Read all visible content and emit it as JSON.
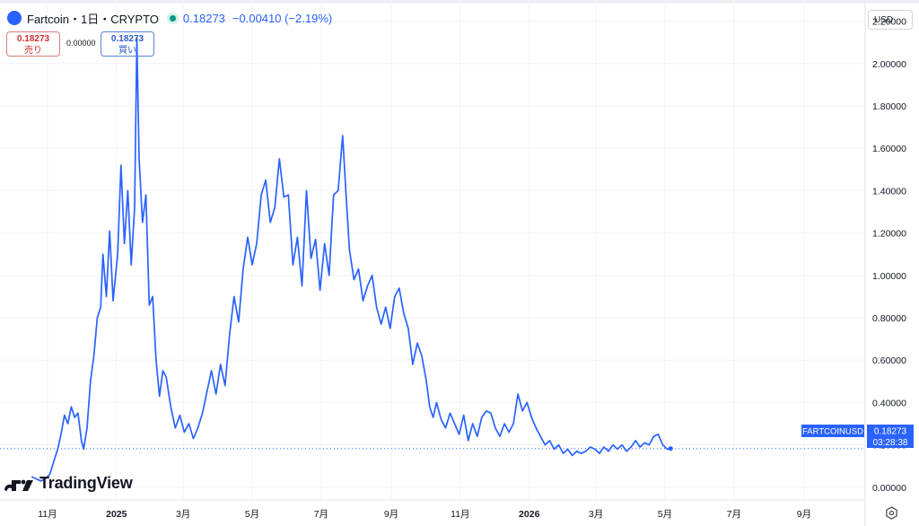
{
  "header": {
    "title": "Fartcoin・1日・CRYPTO",
    "price": "0.18273",
    "change": "−0.00410 (−2.19%)",
    "accent_color": "#2962ff",
    "status_color": "#089981",
    "logo_icon": "fartcoin-logo-icon"
  },
  "quote": {
    "sell_price": "0.18273",
    "sell_label": "売り",
    "spread": "0.00000",
    "buy_price": "0.18273",
    "buy_label": "買い"
  },
  "currency_button": "USD",
  "price_tag": {
    "symbol": "FARTCOINUSD",
    "price": "0.18273",
    "countdown": "03:28:38"
  },
  "brand": {
    "name": "TradingView",
    "icon": "tradingview-logo-icon"
  },
  "chart_data": {
    "type": "line",
    "series_color": "#2962ff",
    "grid": true,
    "ylim": [
      -0.06,
      2.3
    ],
    "y_ticks": [
      "0.00000",
      "0.20000",
      "0.40000",
      "0.60000",
      "0.80000",
      "1.00000",
      "1.20000",
      "1.40000",
      "1.60000",
      "1.80000",
      "2.00000",
      "2.20000"
    ],
    "x_ticks": [
      {
        "date": "2024-11-01",
        "label": "11月"
      },
      {
        "date": "2025-01-01",
        "label": "2025"
      },
      {
        "date": "2025-03-01",
        "label": "3月"
      },
      {
        "date": "2025-05-01",
        "label": "5月"
      },
      {
        "date": "2025-07-01",
        "label": "7月"
      },
      {
        "date": "2025-09-01",
        "label": "9月"
      },
      {
        "date": "2025-11-01",
        "label": "11月"
      },
      {
        "date": "2026-01-01",
        "label": "2026"
      },
      {
        "date": "2026-03-01",
        "label": "3月"
      },
      {
        "date": "2026-05-01",
        "label": "5月"
      },
      {
        "date": "2026-07-01",
        "label": "7月"
      },
      {
        "date": "2026-09-01",
        "label": "9月"
      }
    ],
    "xlim": [
      "2024-09-20",
      "2026-10-25"
    ],
    "last_value": 0.18273,
    "points": [
      [
        "2024-10-18",
        0.05
      ],
      [
        "2024-10-22",
        0.04
      ],
      [
        "2024-10-26",
        0.03
      ],
      [
        "2024-10-30",
        0.04
      ],
      [
        "2024-11-03",
        0.06
      ],
      [
        "2024-11-07",
        0.13
      ],
      [
        "2024-11-10",
        0.18
      ],
      [
        "2024-11-13",
        0.25
      ],
      [
        "2024-11-16",
        0.34
      ],
      [
        "2024-11-19",
        0.3
      ],
      [
        "2024-11-22",
        0.38
      ],
      [
        "2024-11-25",
        0.33
      ],
      [
        "2024-11-28",
        0.35
      ],
      [
        "2024-12-01",
        0.22
      ],
      [
        "2024-12-03",
        0.18
      ],
      [
        "2024-12-06",
        0.28
      ],
      [
        "2024-12-09",
        0.5
      ],
      [
        "2024-12-12",
        0.62
      ],
      [
        "2024-12-15",
        0.8
      ],
      [
        "2024-12-18",
        0.85
      ],
      [
        "2024-12-20",
        1.1
      ],
      [
        "2024-12-23",
        0.9
      ],
      [
        "2024-12-26",
        1.21
      ],
      [
        "2024-12-29",
        0.88
      ],
      [
        "2025-01-02",
        1.1
      ],
      [
        "2025-01-05",
        1.52
      ],
      [
        "2025-01-08",
        1.15
      ],
      [
        "2025-01-11",
        1.4
      ],
      [
        "2025-01-14",
        1.05
      ],
      [
        "2025-01-17",
        1.32
      ],
      [
        "2025-01-19",
        2.12
      ],
      [
        "2025-01-21",
        1.55
      ],
      [
        "2025-01-24",
        1.25
      ],
      [
        "2025-01-27",
        1.38
      ],
      [
        "2025-01-30",
        0.86
      ],
      [
        "2025-02-02",
        0.9
      ],
      [
        "2025-02-05",
        0.6
      ],
      [
        "2025-02-08",
        0.43
      ],
      [
        "2025-02-11",
        0.55
      ],
      [
        "2025-02-14",
        0.52
      ],
      [
        "2025-02-18",
        0.38
      ],
      [
        "2025-02-22",
        0.28
      ],
      [
        "2025-02-26",
        0.34
      ],
      [
        "2025-03-02",
        0.26
      ],
      [
        "2025-03-06",
        0.3
      ],
      [
        "2025-03-10",
        0.23
      ],
      [
        "2025-03-14",
        0.28
      ],
      [
        "2025-03-18",
        0.35
      ],
      [
        "2025-03-22",
        0.45
      ],
      [
        "2025-03-26",
        0.55
      ],
      [
        "2025-03-30",
        0.44
      ],
      [
        "2025-04-03",
        0.58
      ],
      [
        "2025-04-07",
        0.48
      ],
      [
        "2025-04-11",
        0.72
      ],
      [
        "2025-04-15",
        0.9
      ],
      [
        "2025-04-19",
        0.78
      ],
      [
        "2025-04-23",
        1.03
      ],
      [
        "2025-04-27",
        1.18
      ],
      [
        "2025-05-01",
        1.05
      ],
      [
        "2025-05-05",
        1.15
      ],
      [
        "2025-05-09",
        1.38
      ],
      [
        "2025-05-13",
        1.45
      ],
      [
        "2025-05-17",
        1.25
      ],
      [
        "2025-05-21",
        1.32
      ],
      [
        "2025-05-25",
        1.55
      ],
      [
        "2025-05-29",
        1.37
      ],
      [
        "2025-06-02",
        1.38
      ],
      [
        "2025-06-06",
        1.05
      ],
      [
        "2025-06-10",
        1.18
      ],
      [
        "2025-06-14",
        0.95
      ],
      [
        "2025-06-18",
        1.4
      ],
      [
        "2025-06-22",
        1.08
      ],
      [
        "2025-06-26",
        1.17
      ],
      [
        "2025-06-30",
        0.93
      ],
      [
        "2025-07-04",
        1.15
      ],
      [
        "2025-07-08",
        1.0
      ],
      [
        "2025-07-12",
        1.38
      ],
      [
        "2025-07-16",
        1.4
      ],
      [
        "2025-07-20",
        1.66
      ],
      [
        "2025-07-23",
        1.38
      ],
      [
        "2025-07-26",
        1.12
      ],
      [
        "2025-07-30",
        0.98
      ],
      [
        "2025-08-03",
        1.03
      ],
      [
        "2025-08-07",
        0.88
      ],
      [
        "2025-08-11",
        0.95
      ],
      [
        "2025-08-15",
        1.0
      ],
      [
        "2025-08-19",
        0.85
      ],
      [
        "2025-08-23",
        0.77
      ],
      [
        "2025-08-27",
        0.85
      ],
      [
        "2025-08-31",
        0.75
      ],
      [
        "2025-09-04",
        0.9
      ],
      [
        "2025-09-08",
        0.94
      ],
      [
        "2025-09-12",
        0.82
      ],
      [
        "2025-09-16",
        0.75
      ],
      [
        "2025-09-20",
        0.58
      ],
      [
        "2025-09-24",
        0.68
      ],
      [
        "2025-09-28",
        0.62
      ],
      [
        "2025-10-02",
        0.5
      ],
      [
        "2025-10-05",
        0.38
      ],
      [
        "2025-10-08",
        0.33
      ],
      [
        "2025-10-11",
        0.4
      ],
      [
        "2025-10-15",
        0.32
      ],
      [
        "2025-10-19",
        0.28
      ],
      [
        "2025-10-23",
        0.35
      ],
      [
        "2025-10-27",
        0.3
      ],
      [
        "2025-10-31",
        0.25
      ],
      [
        "2025-11-04",
        0.34
      ],
      [
        "2025-11-08",
        0.22
      ],
      [
        "2025-11-12",
        0.3
      ],
      [
        "2025-11-16",
        0.24
      ],
      [
        "2025-11-20",
        0.33
      ],
      [
        "2025-11-24",
        0.36
      ],
      [
        "2025-11-28",
        0.35
      ],
      [
        "2025-12-02",
        0.28
      ],
      [
        "2025-12-06",
        0.24
      ],
      [
        "2025-12-10",
        0.3
      ],
      [
        "2025-12-14",
        0.26
      ],
      [
        "2025-12-18",
        0.3
      ],
      [
        "2025-12-22",
        0.44
      ],
      [
        "2025-12-26",
        0.36
      ],
      [
        "2025-12-30",
        0.4
      ],
      [
        "2026-01-03",
        0.33
      ],
      [
        "2026-01-07",
        0.28
      ],
      [
        "2026-01-11",
        0.24
      ],
      [
        "2026-01-15",
        0.2
      ],
      [
        "2026-01-19",
        0.22
      ],
      [
        "2026-01-23",
        0.18
      ],
      [
        "2026-01-27",
        0.2
      ],
      [
        "2026-01-31",
        0.16
      ],
      [
        "2026-02-04",
        0.18
      ],
      [
        "2026-02-08",
        0.15
      ],
      [
        "2026-02-12",
        0.17
      ],
      [
        "2026-02-16",
        0.16
      ],
      [
        "2026-02-20",
        0.17
      ],
      [
        "2026-02-24",
        0.19
      ],
      [
        "2026-02-28",
        0.18
      ],
      [
        "2026-03-04",
        0.16
      ],
      [
        "2026-03-08",
        0.19
      ],
      [
        "2026-03-12",
        0.17
      ],
      [
        "2026-03-16",
        0.2
      ],
      [
        "2026-03-20",
        0.18
      ],
      [
        "2026-03-24",
        0.2
      ],
      [
        "2026-03-28",
        0.17
      ],
      [
        "2026-04-01",
        0.19
      ],
      [
        "2026-04-05",
        0.22
      ],
      [
        "2026-04-09",
        0.19
      ],
      [
        "2026-04-13",
        0.21
      ],
      [
        "2026-04-17",
        0.2
      ],
      [
        "2026-04-21",
        0.24
      ],
      [
        "2026-04-25",
        0.25
      ],
      [
        "2026-04-29",
        0.2
      ],
      [
        "2026-05-03",
        0.18
      ],
      [
        "2026-05-06",
        0.18273
      ]
    ]
  }
}
